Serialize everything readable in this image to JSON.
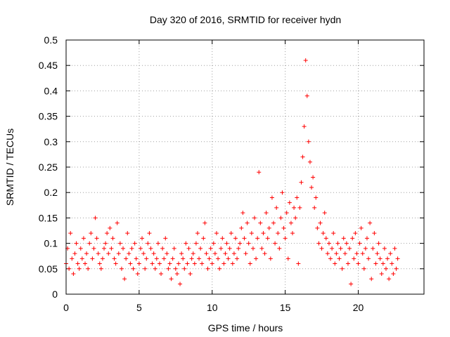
{
  "chart_data": {
    "type": "scatter",
    "title": "Day 320 of 2016, SRMTID for receiver hydn",
    "xlabel": "GPS time / hours",
    "ylabel": "SRMTID / TECUs",
    "xlim": [
      0,
      24.5
    ],
    "ylim": [
      0,
      0.5
    ],
    "xticks": [
      0,
      5,
      10,
      15,
      20
    ],
    "xtick_labels": [
      "0",
      "5",
      "10",
      "15",
      "20"
    ],
    "yticks": [
      0,
      0.05,
      0.1,
      0.15,
      0.2,
      0.25,
      0.3,
      0.35,
      0.4,
      0.45,
      0.5
    ],
    "ytick_labels": [
      "0",
      "0.05",
      "0.1",
      "0.15",
      "0.2",
      "0.25",
      "0.3",
      "0.35",
      "0.4",
      "0.45",
      "0.5"
    ],
    "grid": true,
    "marker": "plus",
    "color": "#ff0000",
    "series": [
      {
        "name": "SRMTID",
        "x": [
          0.0,
          0.1,
          0.2,
          0.3,
          0.4,
          0.5,
          0.6,
          0.7,
          0.8,
          0.9,
          1.0,
          1.1,
          1.2,
          1.3,
          1.4,
          1.5,
          1.6,
          1.7,
          1.8,
          1.9,
          2.0,
          2.1,
          2.2,
          2.3,
          2.4,
          2.5,
          2.6,
          2.7,
          2.8,
          2.9,
          3.0,
          3.1,
          3.2,
          3.3,
          3.4,
          3.5,
          3.6,
          3.7,
          3.8,
          3.9,
          4.0,
          4.1,
          4.2,
          4.3,
          4.4,
          4.5,
          4.6,
          4.7,
          4.8,
          4.9,
          5.0,
          5.1,
          5.2,
          5.3,
          5.4,
          5.5,
          5.6,
          5.7,
          5.8,
          5.9,
          6.0,
          6.1,
          6.2,
          6.3,
          6.4,
          6.5,
          6.6,
          6.7,
          6.8,
          6.9,
          7.0,
          7.1,
          7.2,
          7.3,
          7.4,
          7.5,
          7.6,
          7.7,
          7.8,
          7.9,
          8.0,
          8.1,
          8.2,
          8.3,
          8.4,
          8.5,
          8.6,
          8.7,
          8.8,
          8.9,
          9.0,
          9.1,
          9.2,
          9.3,
          9.4,
          9.5,
          9.6,
          9.7,
          9.8,
          9.9,
          10.0,
          10.1,
          10.2,
          10.3,
          10.4,
          10.5,
          10.6,
          10.7,
          10.8,
          10.9,
          11.0,
          11.1,
          11.2,
          11.3,
          11.4,
          11.5,
          11.6,
          11.7,
          11.8,
          11.9,
          12.0,
          12.1,
          12.2,
          12.3,
          12.4,
          12.5,
          12.6,
          12.7,
          12.8,
          12.9,
          13.0,
          13.1,
          13.2,
          13.3,
          13.4,
          13.5,
          13.6,
          13.7,
          13.8,
          13.9,
          14.0,
          14.1,
          14.2,
          14.3,
          14.4,
          14.5,
          14.6,
          14.7,
          14.8,
          14.9,
          15.0,
          15.1,
          15.2,
          15.3,
          15.4,
          15.5,
          15.6,
          15.7,
          15.8,
          15.9,
          16.0,
          16.1,
          16.2,
          16.3,
          16.4,
          16.5,
          16.6,
          16.7,
          16.8,
          16.9,
          17.0,
          17.1,
          17.2,
          17.3,
          17.4,
          17.5,
          17.6,
          17.7,
          17.8,
          17.9,
          18.0,
          18.1,
          18.2,
          18.3,
          18.4,
          18.5,
          18.6,
          18.7,
          18.8,
          18.9,
          19.0,
          19.1,
          19.2,
          19.3,
          19.4,
          19.5,
          19.6,
          19.7,
          19.8,
          19.9,
          20.0,
          20.1,
          20.2,
          20.3,
          20.4,
          20.5,
          20.6,
          20.7,
          20.8,
          20.9,
          21.0,
          21.1,
          21.2,
          21.3,
          21.4,
          21.5,
          21.6,
          21.7,
          21.8,
          21.9,
          22.0,
          22.1,
          22.2,
          22.3,
          22.4,
          22.5,
          22.6,
          22.7
        ],
        "y": [
          0.06,
          0.09,
          0.05,
          0.12,
          0.07,
          0.04,
          0.08,
          0.1,
          0.06,
          0.05,
          0.09,
          0.07,
          0.11,
          0.06,
          0.08,
          0.05,
          0.1,
          0.12,
          0.07,
          0.09,
          0.15,
          0.11,
          0.08,
          0.06,
          0.05,
          0.07,
          0.09,
          0.1,
          0.12,
          0.08,
          0.13,
          0.09,
          0.11,
          0.07,
          0.06,
          0.14,
          0.08,
          0.1,
          0.05,
          0.09,
          0.03,
          0.07,
          0.12,
          0.08,
          0.06,
          0.09,
          0.05,
          0.1,
          0.07,
          0.04,
          0.06,
          0.09,
          0.11,
          0.08,
          0.05,
          0.07,
          0.1,
          0.12,
          0.09,
          0.06,
          0.08,
          0.05,
          0.07,
          0.1,
          0.06,
          0.04,
          0.09,
          0.07,
          0.11,
          0.08,
          0.05,
          0.06,
          0.03,
          0.07,
          0.09,
          0.05,
          0.04,
          0.06,
          0.02,
          0.08,
          0.07,
          0.05,
          0.1,
          0.06,
          0.09,
          0.04,
          0.07,
          0.08,
          0.06,
          0.1,
          0.12,
          0.07,
          0.09,
          0.06,
          0.11,
          0.14,
          0.08,
          0.05,
          0.07,
          0.09,
          0.06,
          0.1,
          0.08,
          0.12,
          0.07,
          0.05,
          0.09,
          0.11,
          0.06,
          0.08,
          0.1,
          0.07,
          0.09,
          0.12,
          0.06,
          0.08,
          0.11,
          0.07,
          0.09,
          0.1,
          0.13,
          0.16,
          0.11,
          0.08,
          0.14,
          0.1,
          0.06,
          0.12,
          0.09,
          0.15,
          0.07,
          0.11,
          0.24,
          0.14,
          0.09,
          0.12,
          0.08,
          0.16,
          0.11,
          0.13,
          0.07,
          0.19,
          0.14,
          0.1,
          0.17,
          0.12,
          0.09,
          0.15,
          0.2,
          0.13,
          0.11,
          0.16,
          0.07,
          0.18,
          0.14,
          0.12,
          0.17,
          0.15,
          0.19,
          0.06,
          0.17,
          0.22,
          0.27,
          0.33,
          0.46,
          0.39,
          0.3,
          0.26,
          0.21,
          0.23,
          0.17,
          0.19,
          0.13,
          0.1,
          0.14,
          0.09,
          0.12,
          0.16,
          0.11,
          0.08,
          0.1,
          0.07,
          0.09,
          0.12,
          0.06,
          0.08,
          0.1,
          0.07,
          0.09,
          0.05,
          0.11,
          0.08,
          0.1,
          0.06,
          0.09,
          0.02,
          0.11,
          0.07,
          0.12,
          0.08,
          0.06,
          0.1,
          0.13,
          0.08,
          0.05,
          0.09,
          0.11,
          0.07,
          0.14,
          0.03,
          0.09,
          0.12,
          0.06,
          0.08,
          0.1,
          0.07,
          0.04,
          0.06,
          0.09,
          0.05,
          0.07,
          0.03,
          0.08,
          0.06,
          0.04,
          0.09,
          0.05,
          0.07
        ]
      }
    ]
  }
}
